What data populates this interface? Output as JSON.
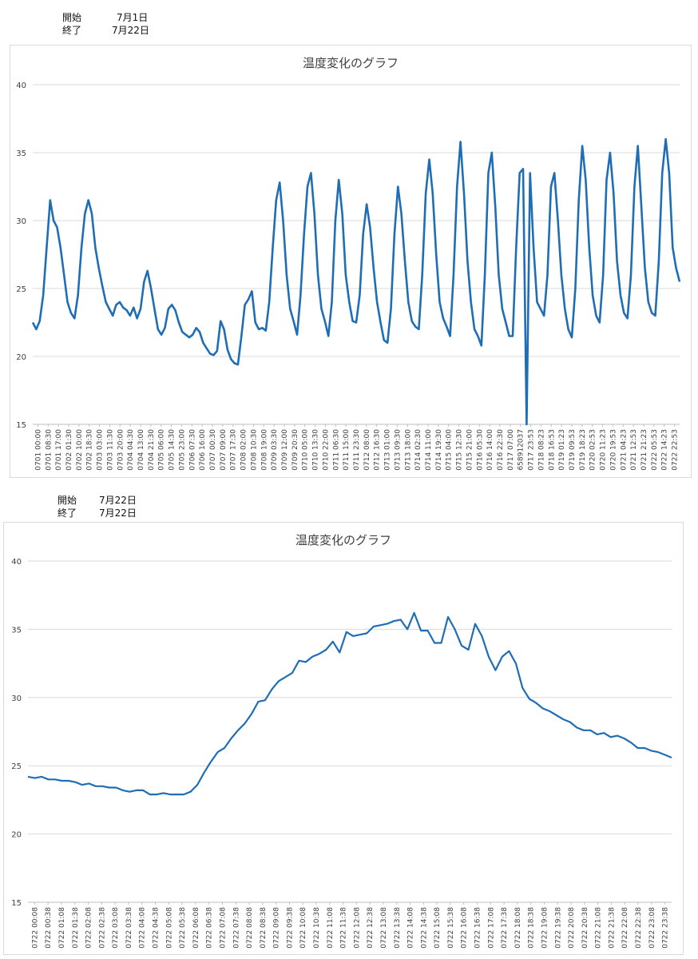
{
  "charts_info": [
    {
      "start_label": "開始",
      "start_value": "7月1日",
      "end_label": "終了",
      "end_value": "7月22日"
    },
    {
      "start_label": "開始",
      "start_value": "7月22日",
      "end_label": "終了",
      "end_value": "7月22日"
    }
  ],
  "colors": {
    "line": "#1f6eb5",
    "grid": "#d9d9d9",
    "axis": "#bfbfbf"
  },
  "chart_data": [
    {
      "type": "line",
      "title": "温度変化のグラフ",
      "ylim": [
        15,
        40
      ],
      "yticks": [
        15,
        20,
        25,
        30,
        35,
        40
      ],
      "grid": true,
      "x_tick_labels": [
        "0701 00:00",
        "0701 08:30",
        "0701 17:00",
        "0702 01:30",
        "0702 10:00",
        "0702 18:30",
        "0703 03:00",
        "0703 11:30",
        "0703 20:00",
        "0704 04:30",
        "0704 13:00",
        "0704 21:30",
        "0705 06:00",
        "0705 14:30",
        "0705 23:00",
        "0706 07:30",
        "0706 16:00",
        "0707 00:30",
        "0707 09:00",
        "0707 17:30",
        "0708 02:00",
        "0708 10:30",
        "0708 19:00",
        "0709 03:30",
        "0709 12:00",
        "0709 20:30",
        "0710 05:00",
        "0710 13:30",
        "0710 22:00",
        "0711 06:30",
        "0711 15:00",
        "0711 23:30",
        "0712 08:00",
        "0712 16:30",
        "0713 01:00",
        "0713 09:30",
        "0713 18:00",
        "0714 02:30",
        "0714 11:00",
        "0714 19:30",
        "0715 04:00",
        "0715 12:30",
        "0715 21:00",
        "0716 05:30",
        "0716 14:00",
        "0716 22:30",
        "0717 07:00",
        "658912037",
        "0717 23:53",
        "0718 08:23",
        "0718 16:53",
        "0719 01:23",
        "0719 09:53",
        "0719 18:23",
        "0720 02:53",
        "0720 11:23",
        "0720 19:53",
        "0721 04:23",
        "0721 12:53",
        "0721 21:23",
        "0722 05:53",
        "0722 14:23",
        "0722 22:53"
      ],
      "series": [
        {
          "values": [
            22.5,
            22.0,
            22.6,
            24.5,
            28.0,
            31.5,
            30.0,
            29.5,
            28.0,
            26.0,
            24.0,
            23.2,
            22.8,
            24.5,
            28.0,
            30.5,
            31.5,
            30.5,
            28.0,
            26.5,
            25.2,
            24.0,
            23.5,
            23.0,
            23.8,
            24.0,
            23.6,
            23.4,
            23.0,
            23.6,
            22.8,
            23.5,
            25.5,
            26.3,
            25.0,
            23.5,
            22.0,
            21.6,
            22.1,
            23.5,
            23.8,
            23.4,
            22.5,
            21.8,
            21.6,
            21.4,
            21.6,
            22.1,
            21.8,
            21.0,
            20.6,
            20.2,
            20.1,
            20.4,
            22.6,
            22.0,
            20.5,
            19.8,
            19.5,
            19.4,
            21.5,
            23.8,
            24.2,
            24.8,
            22.5,
            22.0,
            22.1,
            21.9,
            24.0,
            28.0,
            31.5,
            32.8,
            30.0,
            26.0,
            23.5,
            22.6,
            21.6,
            24.5,
            29.0,
            32.5,
            33.5,
            30.5,
            26.0,
            23.5,
            22.6,
            21.5,
            24.0,
            30.0,
            33.0,
            30.5,
            26.0,
            24.0,
            22.6,
            22.5,
            24.5,
            29.0,
            31.2,
            29.5,
            26.5,
            24.0,
            22.5,
            21.2,
            21.0,
            23.5,
            29.0,
            32.5,
            30.5,
            27.0,
            24.0,
            22.6,
            22.2,
            22.0,
            26.0,
            32.0,
            34.5,
            32.0,
            27.5,
            24.0,
            22.8,
            22.2,
            21.5,
            26.0,
            32.5,
            35.8,
            32.0,
            27.0,
            24.0,
            22.0,
            21.5,
            20.8,
            26.0,
            33.5,
            35.0,
            31.0,
            26.0,
            23.5,
            22.5,
            21.5,
            21.5,
            28.0,
            33.5,
            33.8,
            15.0,
            33.5,
            28.0,
            24.0,
            23.5,
            23.0,
            26.0,
            32.5,
            33.5,
            30.0,
            26.0,
            23.5,
            22.0,
            21.4,
            25.0,
            31.5,
            35.5,
            33.0,
            28.0,
            24.5,
            23.0,
            22.5,
            26.0,
            33.0,
            35.0,
            32.0,
            27.0,
            24.5,
            23.2,
            22.8,
            26.0,
            32.5,
            35.5,
            31.0,
            26.5,
            24.0,
            23.2,
            23.0,
            27.0,
            33.5,
            36.0,
            33.5,
            28.0,
            26.5,
            25.5
          ]
        }
      ]
    },
    {
      "type": "line",
      "title": "温度変化のグラフ",
      "ylim": [
        15,
        40
      ],
      "yticks": [
        15,
        20,
        25,
        30,
        35,
        40
      ],
      "grid": true,
      "x_tick_labels": [
        "0722 00:08",
        "0722 00:38",
        "0722 01:08",
        "0722 01:38",
        "0722 02:08",
        "0722 02:38",
        "0722 03:08",
        "0722 03:38",
        "0722 04:08",
        "0722 04:38",
        "0722 05:08",
        "0722 05:38",
        "0722 06:08",
        "0722 06:38",
        "0722 07:08",
        "0722 07:38",
        "0722 08:08",
        "0722 08:38",
        "0722 09:08",
        "0722 09:38",
        "0722 10:08",
        "0722 10:38",
        "0722 11:08",
        "0722 11:38",
        "0722 12:08",
        "0722 12:38",
        "0722 13:08",
        "0722 13:38",
        "0722 14:08",
        "0722 14:38",
        "0722 15:08",
        "0722 15:38",
        "0722 16:08",
        "0722 16:38",
        "0722 17:08",
        "0722 17:38",
        "0722 18:08",
        "0722 18:38",
        "0722 19:08",
        "0722 19:38",
        "0722 20:08",
        "0722 20:38",
        "0722 21:08",
        "0722 21:38",
        "0722 22:08",
        "0722 22:38",
        "0722 23:08",
        "0722 23:38"
      ],
      "series": [
        {
          "values": [
            24.2,
            24.1,
            24.2,
            24.0,
            24.0,
            23.9,
            23.9,
            23.8,
            23.6,
            23.7,
            23.5,
            23.5,
            23.4,
            23.4,
            23.2,
            23.1,
            23.2,
            23.2,
            22.9,
            22.9,
            23.0,
            22.9,
            22.9,
            22.9,
            23.1,
            23.6,
            24.5,
            25.3,
            26.0,
            26.3,
            27.0,
            27.6,
            28.1,
            28.8,
            29.7,
            29.8,
            30.6,
            31.2,
            31.5,
            31.8,
            32.7,
            32.6,
            33.0,
            33.2,
            33.5,
            34.1,
            33.3,
            34.8,
            34.5,
            34.6,
            34.7,
            35.2,
            35.3,
            35.4,
            35.6,
            35.7,
            35.0,
            36.2,
            34.9,
            34.9,
            34.0,
            34.0,
            35.9,
            35.0,
            33.8,
            33.5,
            35.4,
            34.5,
            33.0,
            32.0,
            33.0,
            33.4,
            32.5,
            30.7,
            29.9,
            29.6,
            29.2,
            29.0,
            28.7,
            28.4,
            28.2,
            27.8,
            27.6,
            27.6,
            27.3,
            27.4,
            27.1,
            27.2,
            27.0,
            26.7,
            26.3,
            26.3,
            26.1,
            26.0,
            25.8,
            25.6
          ]
        }
      ]
    }
  ]
}
